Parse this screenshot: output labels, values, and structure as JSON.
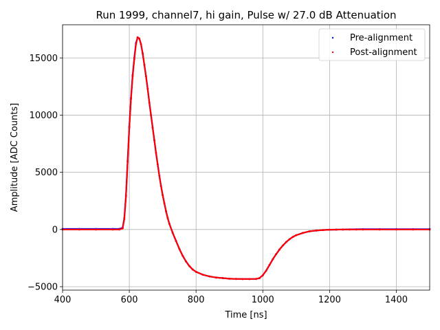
{
  "chart_data": {
    "type": "scatter",
    "title": "Run 1999, channel7, hi gain, Pulse w/ 27.0 dB Attenuation",
    "xlabel": "Time [ns]",
    "ylabel": "Amplitude [ADC Counts]",
    "xlim": [
      400,
      1500
    ],
    "ylim": [
      -5300,
      17900
    ],
    "xticks": [
      400,
      600,
      800,
      1000,
      1200,
      1400
    ],
    "yticks": [
      -5000,
      0,
      5000,
      10000,
      15000
    ],
    "grid": true,
    "legend_position": "top-right",
    "series": [
      {
        "name": "Pre-alignment",
        "color": "#0000ff",
        "x": [
          400,
          450,
          500,
          550,
          570,
          580,
          585,
          590,
          595,
          600,
          605,
          610,
          615,
          620,
          625,
          630,
          635,
          640,
          645,
          650,
          655,
          660,
          665,
          670,
          675,
          680,
          685,
          690,
          695,
          700,
          705,
          710,
          715,
          720,
          730,
          740,
          750,
          760,
          770,
          780,
          790,
          800,
          820,
          840,
          860,
          880,
          900,
          920,
          940,
          960,
          980,
          990,
          1000,
          1010,
          1020,
          1030,
          1040,
          1050,
          1060,
          1070,
          1080,
          1090,
          1100,
          1120,
          1140,
          1160,
          1180,
          1200,
          1220,
          1240,
          1260,
          1280,
          1300,
          1350,
          1400,
          1450,
          1500
        ],
        "y": [
          50,
          50,
          50,
          50,
          50,
          150,
          1000,
          3000,
          6000,
          9000,
          11500,
          13500,
          15000,
          16300,
          16800,
          16700,
          16200,
          15400,
          14400,
          13400,
          12300,
          11100,
          10000,
          8900,
          7800,
          6700,
          5700,
          4700,
          3800,
          3000,
          2300,
          1600,
          1000,
          500,
          -300,
          -1000,
          -1700,
          -2300,
          -2800,
          -3200,
          -3500,
          -3700,
          -3950,
          -4100,
          -4200,
          -4250,
          -4300,
          -4320,
          -4330,
          -4330,
          -4320,
          -4250,
          -4000,
          -3600,
          -3100,
          -2600,
          -2150,
          -1750,
          -1400,
          -1100,
          -850,
          -650,
          -500,
          -300,
          -160,
          -90,
          -50,
          -20,
          -10,
          0,
          10,
          20,
          30,
          30,
          30,
          30,
          30
        ]
      },
      {
        "name": "Post-alignment",
        "color": "#ff0000",
        "x": [
          400,
          450,
          500,
          550,
          570,
          580,
          585,
          590,
          595,
          600,
          605,
          610,
          615,
          620,
          625,
          630,
          635,
          640,
          645,
          650,
          655,
          660,
          665,
          670,
          675,
          680,
          685,
          690,
          695,
          700,
          705,
          710,
          715,
          720,
          730,
          740,
          750,
          760,
          770,
          780,
          790,
          800,
          820,
          840,
          860,
          880,
          900,
          920,
          940,
          960,
          980,
          990,
          1000,
          1010,
          1020,
          1030,
          1040,
          1050,
          1060,
          1070,
          1080,
          1090,
          1100,
          1120,
          1140,
          1160,
          1180,
          1200,
          1220,
          1240,
          1260,
          1280,
          1300,
          1350,
          1400,
          1450,
          1500
        ],
        "y": [
          0,
          0,
          0,
          0,
          0,
          100,
          900,
          2900,
          5900,
          8900,
          11400,
          13400,
          14900,
          16200,
          16800,
          16700,
          16200,
          15400,
          14400,
          13400,
          12300,
          11100,
          10000,
          8900,
          7800,
          6700,
          5700,
          4700,
          3800,
          3000,
          2300,
          1600,
          1000,
          500,
          -300,
          -1000,
          -1700,
          -2300,
          -2800,
          -3200,
          -3500,
          -3700,
          -3950,
          -4100,
          -4200,
          -4250,
          -4300,
          -4320,
          -4330,
          -4330,
          -4320,
          -4250,
          -4000,
          -3600,
          -3100,
          -2600,
          -2150,
          -1750,
          -1400,
          -1100,
          -850,
          -650,
          -500,
          -300,
          -160,
          -90,
          -50,
          -20,
          -10,
          0,
          0,
          0,
          0,
          0,
          0,
          0,
          0
        ]
      }
    ]
  }
}
